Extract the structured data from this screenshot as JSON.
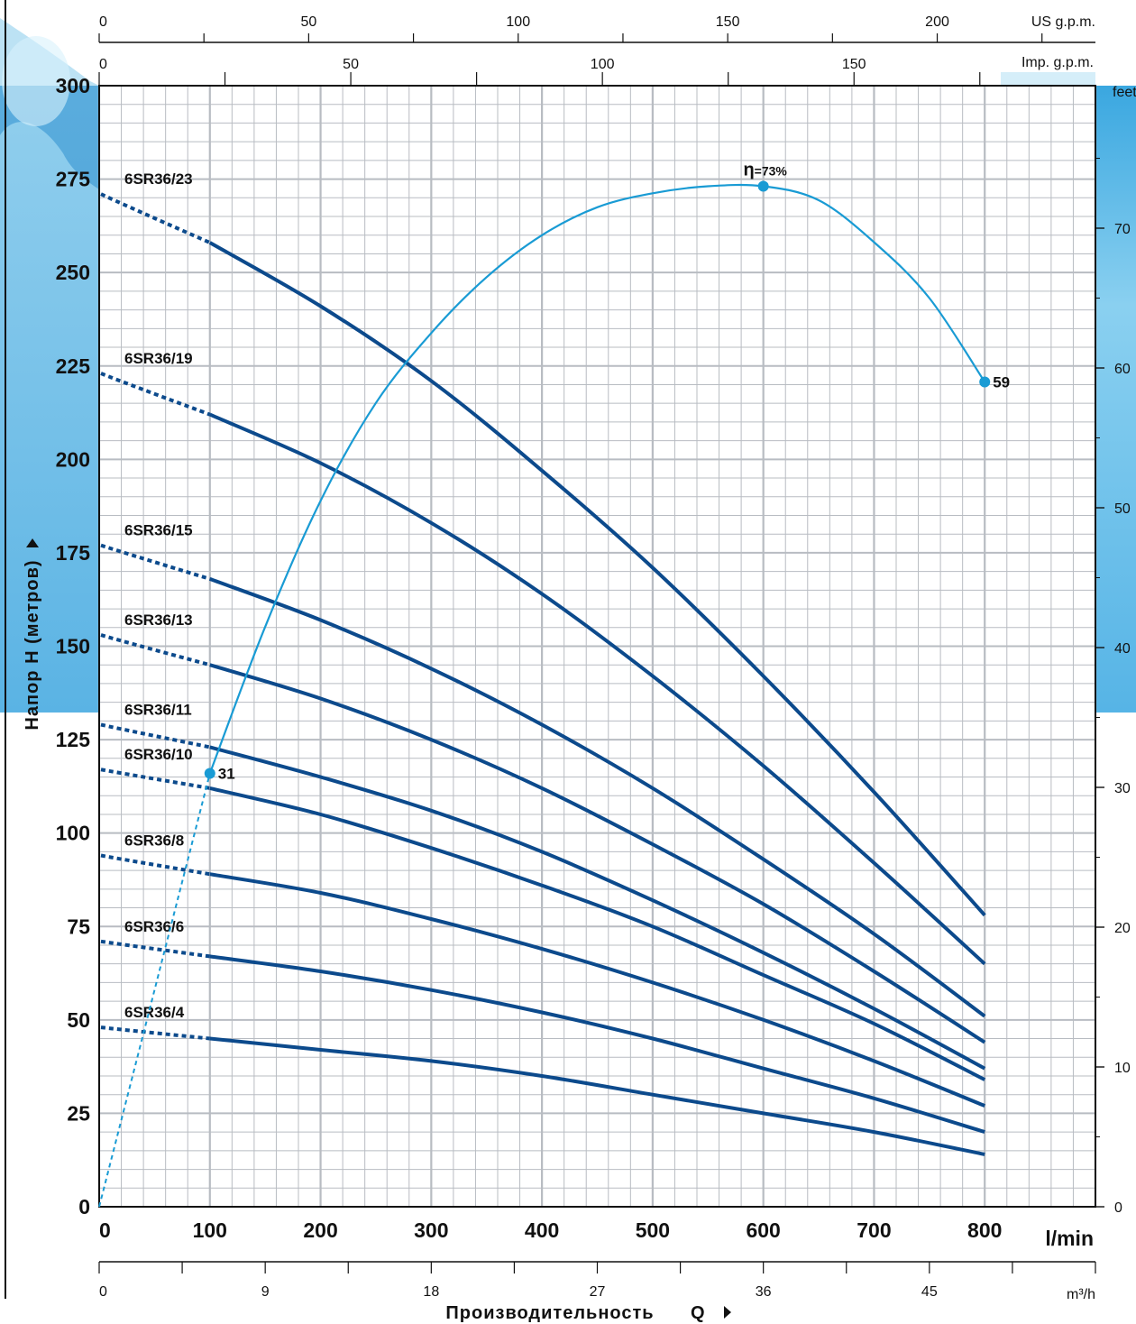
{
  "chart_data": {
    "type": "line",
    "xlabel": "Производительность",
    "xlabel_symbol": "Q",
    "ylabel": "Напор H (метров)",
    "x_unit": "l/min",
    "xlim": [
      0,
      900
    ],
    "ylim": [
      0,
      300
    ],
    "x_ticks": [
      0,
      100,
      200,
      300,
      400,
      500,
      600,
      700,
      800
    ],
    "y_ticks": [
      0,
      25,
      50,
      75,
      100,
      125,
      150,
      175,
      200,
      225,
      250,
      275,
      300
    ],
    "grid": true,
    "secondary_axes": {
      "us_gpm": {
        "label": "US g.p.m.",
        "ticks": [
          0,
          50,
          100,
          150,
          200
        ]
      },
      "imp_gpm": {
        "label": "Imp. g.p.m.",
        "ticks": [
          0,
          50,
          100,
          150
        ]
      },
      "m3h": {
        "label": "m³/h",
        "ticks": [
          0,
          9,
          18,
          27,
          36,
          45
        ]
      },
      "feet": {
        "label": "feet",
        "ticks": [
          0,
          10,
          20,
          30,
          40,
          50,
          60,
          70
        ]
      }
    },
    "series": [
      {
        "name": "6SR36/23",
        "solid_from_x": 100,
        "x": [
          0,
          100,
          200,
          300,
          400,
          500,
          600,
          700,
          800
        ],
        "y": [
          271,
          258,
          241,
          221,
          197,
          171,
          142,
          111,
          78
        ]
      },
      {
        "name": "6SR36/19",
        "solid_from_x": 100,
        "x": [
          0,
          100,
          200,
          300,
          400,
          500,
          600,
          700,
          800
        ],
        "y": [
          223,
          212,
          199,
          183,
          164,
          142,
          118,
          92,
          65
        ]
      },
      {
        "name": "6SR36/15",
        "solid_from_x": 100,
        "x": [
          0,
          100,
          200,
          300,
          400,
          500,
          600,
          700,
          800
        ],
        "y": [
          177,
          168,
          157,
          144,
          129,
          112,
          93,
          73,
          51
        ]
      },
      {
        "name": "6SR36/13",
        "solid_from_x": 100,
        "x": [
          0,
          100,
          200,
          300,
          400,
          500,
          600,
          700,
          800
        ],
        "y": [
          153,
          145,
          136,
          125,
          112,
          97,
          81,
          63,
          44
        ]
      },
      {
        "name": "6SR36/11",
        "solid_from_x": 100,
        "x": [
          0,
          100,
          200,
          300,
          400,
          500,
          600,
          700,
          800
        ],
        "y": [
          129,
          123,
          115,
          106,
          95,
          82,
          68,
          53,
          37
        ]
      },
      {
        "name": "6SR36/10",
        "solid_from_x": 100,
        "x": [
          0,
          100,
          200,
          300,
          400,
          500,
          600,
          700,
          800
        ],
        "y": [
          117,
          112,
          105,
          96,
          86,
          75,
          62,
          49,
          34
        ]
      },
      {
        "name": "6SR36/8",
        "solid_from_x": 100,
        "x": [
          0,
          100,
          200,
          300,
          400,
          500,
          600,
          700,
          800
        ],
        "y": [
          94,
          89,
          84,
          77,
          69,
          60,
          50,
          39,
          27
        ]
      },
      {
        "name": "6SR36/6",
        "solid_from_x": 100,
        "x": [
          0,
          100,
          200,
          300,
          400,
          500,
          600,
          700,
          800
        ],
        "y": [
          71,
          67,
          63,
          58,
          52,
          45,
          37,
          29,
          20
        ]
      },
      {
        "name": "6SR36/4",
        "solid_from_x": 100,
        "x": [
          0,
          100,
          200,
          300,
          400,
          500,
          600,
          700,
          800
        ],
        "y": [
          48,
          45,
          42,
          39,
          35,
          30,
          25,
          20,
          14
        ]
      }
    ],
    "efficiency_curve": {
      "x": [
        0,
        100,
        150,
        200,
        250,
        300,
        350,
        400,
        450,
        500,
        550,
        600,
        650,
        700,
        750,
        800
      ],
      "y_feet": [
        0,
        31,
        41.5,
        50.5,
        57.5,
        62.5,
        66.5,
        69.5,
        71.5,
        72.5,
        73,
        73,
        72,
        69,
        65,
        59
      ],
      "points": [
        {
          "x": 100,
          "value": "31"
        },
        {
          "x": 600,
          "value": "73%",
          "symbol": "η="
        },
        {
          "x": 800,
          "value": "59"
        }
      ]
    },
    "colors": {
      "curves": "#0c4a8c",
      "efficiency": "#199bd4",
      "grid": "#b8bcc2"
    }
  }
}
